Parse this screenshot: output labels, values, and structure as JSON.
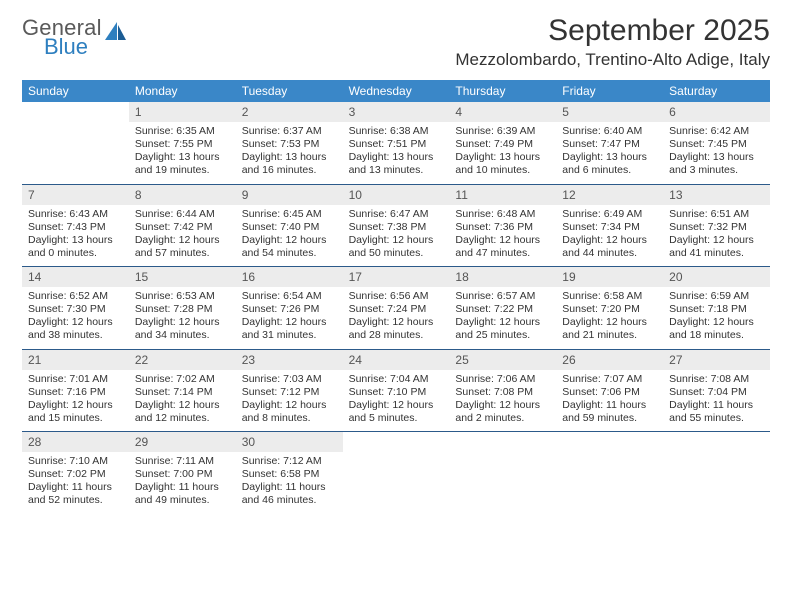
{
  "logo": {
    "word1": "General",
    "word2": "Blue"
  },
  "title": "September 2025",
  "location": "Mezzolombardo, Trentino-Alto Adige, Italy",
  "colors": {
    "header_bg": "#3a87c8",
    "header_text": "#ffffff",
    "daynum_bg": "#ececec",
    "daynum_text": "#555555",
    "body_text": "#333333",
    "week_divider": "#2c5a8a",
    "logo_gray": "#5a5a5a",
    "logo_blue": "#2e7fbf",
    "page_bg": "#ffffff"
  },
  "dow": [
    "Sunday",
    "Monday",
    "Tuesday",
    "Wednesday",
    "Thursday",
    "Friday",
    "Saturday"
  ],
  "weeks": [
    [
      null,
      {
        "n": "1",
        "sr": "Sunrise: 6:35 AM",
        "ss": "Sunset: 7:55 PM",
        "dl1": "Daylight: 13 hours",
        "dl2": "and 19 minutes."
      },
      {
        "n": "2",
        "sr": "Sunrise: 6:37 AM",
        "ss": "Sunset: 7:53 PM",
        "dl1": "Daylight: 13 hours",
        "dl2": "and 16 minutes."
      },
      {
        "n": "3",
        "sr": "Sunrise: 6:38 AM",
        "ss": "Sunset: 7:51 PM",
        "dl1": "Daylight: 13 hours",
        "dl2": "and 13 minutes."
      },
      {
        "n": "4",
        "sr": "Sunrise: 6:39 AM",
        "ss": "Sunset: 7:49 PM",
        "dl1": "Daylight: 13 hours",
        "dl2": "and 10 minutes."
      },
      {
        "n": "5",
        "sr": "Sunrise: 6:40 AM",
        "ss": "Sunset: 7:47 PM",
        "dl1": "Daylight: 13 hours",
        "dl2": "and 6 minutes."
      },
      {
        "n": "6",
        "sr": "Sunrise: 6:42 AM",
        "ss": "Sunset: 7:45 PM",
        "dl1": "Daylight: 13 hours",
        "dl2": "and 3 minutes."
      }
    ],
    [
      {
        "n": "7",
        "sr": "Sunrise: 6:43 AM",
        "ss": "Sunset: 7:43 PM",
        "dl1": "Daylight: 13 hours",
        "dl2": "and 0 minutes."
      },
      {
        "n": "8",
        "sr": "Sunrise: 6:44 AM",
        "ss": "Sunset: 7:42 PM",
        "dl1": "Daylight: 12 hours",
        "dl2": "and 57 minutes."
      },
      {
        "n": "9",
        "sr": "Sunrise: 6:45 AM",
        "ss": "Sunset: 7:40 PM",
        "dl1": "Daylight: 12 hours",
        "dl2": "and 54 minutes."
      },
      {
        "n": "10",
        "sr": "Sunrise: 6:47 AM",
        "ss": "Sunset: 7:38 PM",
        "dl1": "Daylight: 12 hours",
        "dl2": "and 50 minutes."
      },
      {
        "n": "11",
        "sr": "Sunrise: 6:48 AM",
        "ss": "Sunset: 7:36 PM",
        "dl1": "Daylight: 12 hours",
        "dl2": "and 47 minutes."
      },
      {
        "n": "12",
        "sr": "Sunrise: 6:49 AM",
        "ss": "Sunset: 7:34 PM",
        "dl1": "Daylight: 12 hours",
        "dl2": "and 44 minutes."
      },
      {
        "n": "13",
        "sr": "Sunrise: 6:51 AM",
        "ss": "Sunset: 7:32 PM",
        "dl1": "Daylight: 12 hours",
        "dl2": "and 41 minutes."
      }
    ],
    [
      {
        "n": "14",
        "sr": "Sunrise: 6:52 AM",
        "ss": "Sunset: 7:30 PM",
        "dl1": "Daylight: 12 hours",
        "dl2": "and 38 minutes."
      },
      {
        "n": "15",
        "sr": "Sunrise: 6:53 AM",
        "ss": "Sunset: 7:28 PM",
        "dl1": "Daylight: 12 hours",
        "dl2": "and 34 minutes."
      },
      {
        "n": "16",
        "sr": "Sunrise: 6:54 AM",
        "ss": "Sunset: 7:26 PM",
        "dl1": "Daylight: 12 hours",
        "dl2": "and 31 minutes."
      },
      {
        "n": "17",
        "sr": "Sunrise: 6:56 AM",
        "ss": "Sunset: 7:24 PM",
        "dl1": "Daylight: 12 hours",
        "dl2": "and 28 minutes."
      },
      {
        "n": "18",
        "sr": "Sunrise: 6:57 AM",
        "ss": "Sunset: 7:22 PM",
        "dl1": "Daylight: 12 hours",
        "dl2": "and 25 minutes."
      },
      {
        "n": "19",
        "sr": "Sunrise: 6:58 AM",
        "ss": "Sunset: 7:20 PM",
        "dl1": "Daylight: 12 hours",
        "dl2": "and 21 minutes."
      },
      {
        "n": "20",
        "sr": "Sunrise: 6:59 AM",
        "ss": "Sunset: 7:18 PM",
        "dl1": "Daylight: 12 hours",
        "dl2": "and 18 minutes."
      }
    ],
    [
      {
        "n": "21",
        "sr": "Sunrise: 7:01 AM",
        "ss": "Sunset: 7:16 PM",
        "dl1": "Daylight: 12 hours",
        "dl2": "and 15 minutes."
      },
      {
        "n": "22",
        "sr": "Sunrise: 7:02 AM",
        "ss": "Sunset: 7:14 PM",
        "dl1": "Daylight: 12 hours",
        "dl2": "and 12 minutes."
      },
      {
        "n": "23",
        "sr": "Sunrise: 7:03 AM",
        "ss": "Sunset: 7:12 PM",
        "dl1": "Daylight: 12 hours",
        "dl2": "and 8 minutes."
      },
      {
        "n": "24",
        "sr": "Sunrise: 7:04 AM",
        "ss": "Sunset: 7:10 PM",
        "dl1": "Daylight: 12 hours",
        "dl2": "and 5 minutes."
      },
      {
        "n": "25",
        "sr": "Sunrise: 7:06 AM",
        "ss": "Sunset: 7:08 PM",
        "dl1": "Daylight: 12 hours",
        "dl2": "and 2 minutes."
      },
      {
        "n": "26",
        "sr": "Sunrise: 7:07 AM",
        "ss": "Sunset: 7:06 PM",
        "dl1": "Daylight: 11 hours",
        "dl2": "and 59 minutes."
      },
      {
        "n": "27",
        "sr": "Sunrise: 7:08 AM",
        "ss": "Sunset: 7:04 PM",
        "dl1": "Daylight: 11 hours",
        "dl2": "and 55 minutes."
      }
    ],
    [
      {
        "n": "28",
        "sr": "Sunrise: 7:10 AM",
        "ss": "Sunset: 7:02 PM",
        "dl1": "Daylight: 11 hours",
        "dl2": "and 52 minutes."
      },
      {
        "n": "29",
        "sr": "Sunrise: 7:11 AM",
        "ss": "Sunset: 7:00 PM",
        "dl1": "Daylight: 11 hours",
        "dl2": "and 49 minutes."
      },
      {
        "n": "30",
        "sr": "Sunrise: 7:12 AM",
        "ss": "Sunset: 6:58 PM",
        "dl1": "Daylight: 11 hours",
        "dl2": "and 46 minutes."
      },
      null,
      null,
      null,
      null
    ]
  ]
}
